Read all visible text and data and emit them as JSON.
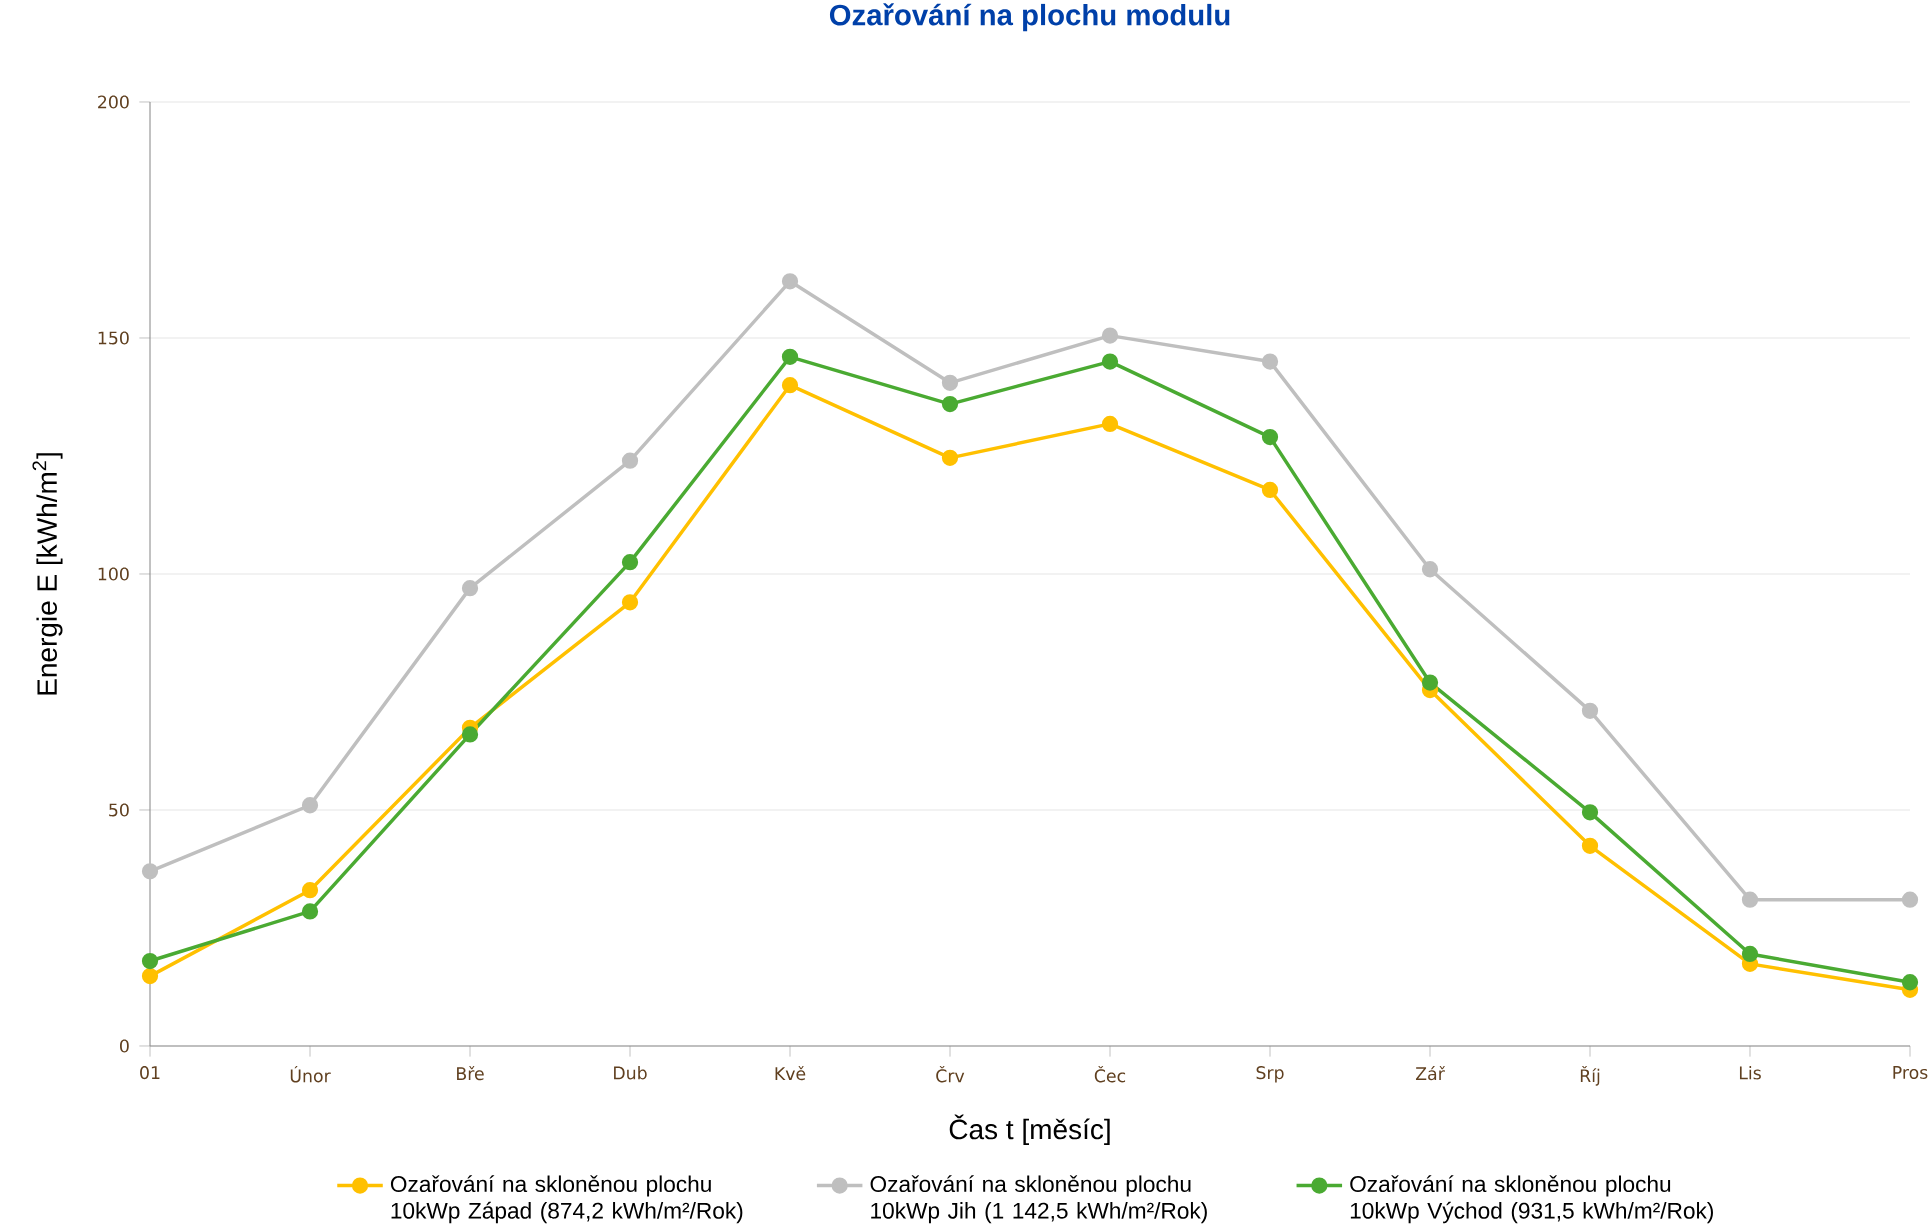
{
  "chart_data": {
    "type": "line",
    "title": "Ozařování na plochu modulu",
    "xlabel": "Čas t [měsíc]",
    "ylabel": "Energie E [kWh/m$^{2}$]",
    "categories": [
      "01",
      "Únor",
      "Bře",
      "Dub",
      "Kvě",
      "Črv",
      "Čec",
      "Srp",
      "Zář",
      "Říj",
      "Lis",
      "Pros"
    ],
    "series": [
      {
        "name": "Ozařování na skloněnou plochu 10kWp Západ (874,2 kWh/m²/Rok)",
        "color": "#ffc000",
        "values": [
          14.8,
          33,
          67.4,
          94,
          140,
          124.6,
          131.8,
          117.8,
          75.4,
          42.4,
          17.4,
          11.9
        ]
      },
      {
        "name": "Ozařování na skloněnou plochu 10kWp Jih (1 142,5 kWh/m²/Rok)",
        "color": "#bfbfbf",
        "values": [
          37,
          51,
          97,
          124,
          162,
          140.5,
          150.5,
          145,
          101,
          71,
          31,
          31
        ]
      },
      {
        "name": "Ozařování na skloněnou plochu 10kWp Východ (931,5 kWh/m²/Rok)",
        "color": "#4aaa32",
        "values": [
          18,
          28.5,
          66,
          102.5,
          146,
          136,
          145,
          129,
          77,
          49.5,
          19.5,
          13.5
        ]
      }
    ],
    "ylim": [
      0,
      200
    ],
    "yticks": [
      0,
      50,
      100,
      150,
      200
    ],
    "grid": "y",
    "legend": "bottom",
    "marker": "circle",
    "line_style": "solid"
  }
}
